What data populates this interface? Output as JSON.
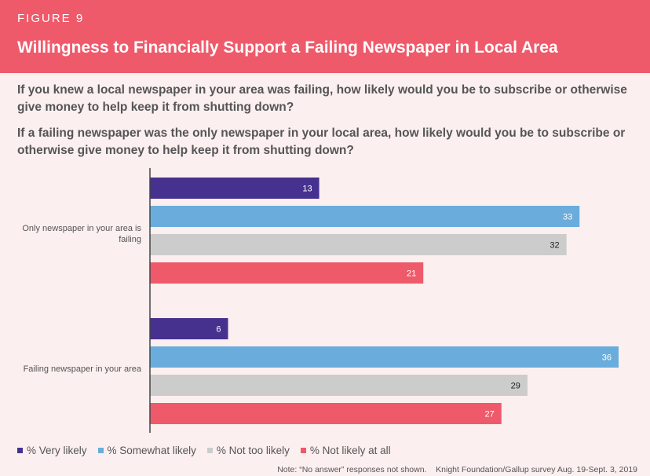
{
  "header": {
    "figure_label": "FIGURE 9",
    "title": "Willingness to Financially Support a Failing Newspaper in Local Area"
  },
  "questions": [
    "If you knew a local newspaper in your area was failing, how likely would you be to subscribe or otherwise give money to help keep it from shutting down?",
    "If a failing newspaper was the only newspaper in your local area, how likely would you be to subscribe or otherwise give money to help keep it from shutting down?"
  ],
  "chart_data": {
    "type": "bar",
    "orientation": "horizontal",
    "categories": [
      "Only newspaper in your area is failing",
      "Failing newspaper in your area"
    ],
    "series": [
      {
        "name": "% Very likely",
        "color": "#46318f",
        "values": [
          13,
          6
        ]
      },
      {
        "name": "% Somewhat likely",
        "color": "#6aaddc",
        "values": [
          33,
          36
        ]
      },
      {
        "name": "% Not too likely",
        "color": "#cccccc",
        "values": [
          32,
          29
        ]
      },
      {
        "name": "% Not likely at all",
        "color": "#ef5a6b",
        "values": [
          21,
          27
        ]
      }
    ],
    "xlim": [
      0,
      36
    ],
    "legend_position": "bottom-left"
  },
  "footer": {
    "note": "Note: “No answer” responses not shown.",
    "source": "Knight Foundation/Gallup survey Aug. 19-Sept. 3, 2019"
  }
}
